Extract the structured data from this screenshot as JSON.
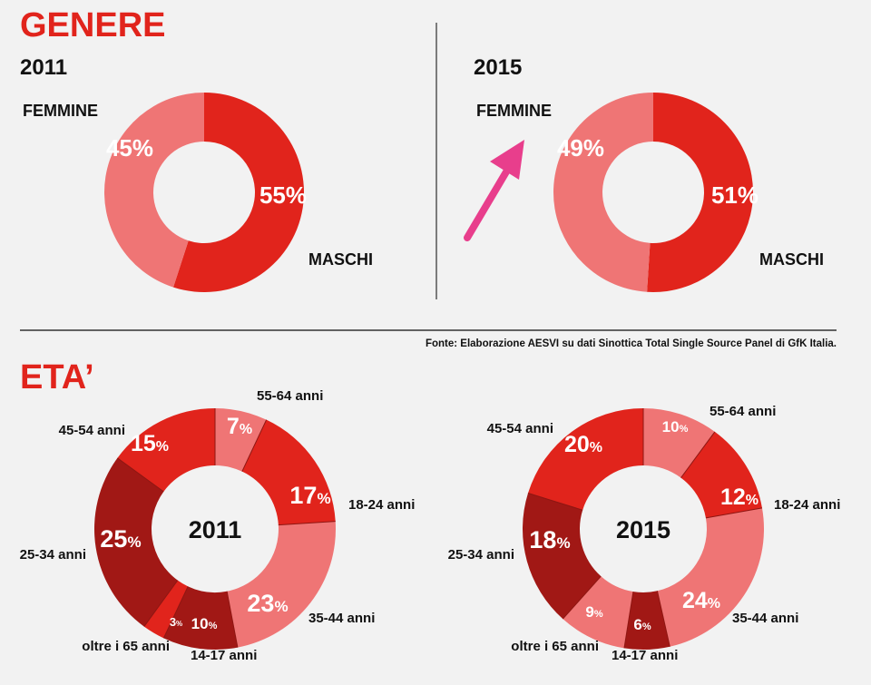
{
  "sections": {
    "gender_title": "GENERE",
    "age_title": "ETA’",
    "source": "Fonte: Elaborazione AESVI su dati Sinottica Total Single Source Panel di GfK Italia."
  },
  "colors": {
    "title": "#e1241c",
    "arrow": "#e83e8c",
    "pink": "#ef7575",
    "red": "#e1241c",
    "dark": "#a11815"
  },
  "chart_data": [
    {
      "type": "pie",
      "id": "gender-2011",
      "title": "2011",
      "donut": true,
      "slices": [
        {
          "label": "MASCHI",
          "value": 55,
          "display": "55%",
          "color": "#e1241c"
        },
        {
          "label": "FEMMINE",
          "value": 45,
          "display": "45%",
          "color": "#ef7575"
        }
      ]
    },
    {
      "type": "pie",
      "id": "gender-2015",
      "title": "2015",
      "donut": true,
      "slices": [
        {
          "label": "MASCHI",
          "value": 51,
          "display": "51%",
          "color": "#e1241c"
        },
        {
          "label": "FEMMINE",
          "value": 49,
          "display": "49%",
          "color": "#ef7575"
        }
      ]
    },
    {
      "type": "pie",
      "id": "age-2011",
      "title": "2011",
      "donut": true,
      "slices": [
        {
          "label": "55-64 anni",
          "value": 7,
          "num": "7",
          "color": "#ef7575"
        },
        {
          "label": "18-24 anni",
          "value": 17,
          "num": "17",
          "color": "#e1241c"
        },
        {
          "label": "35-44 anni",
          "value": 23,
          "num": "23",
          "color": "#ef7575"
        },
        {
          "label": "14-17 anni",
          "value": 10,
          "num": "10",
          "color": "#a11815"
        },
        {
          "label": "oltre i 65 anni",
          "value": 3,
          "num": "3",
          "color": "#e1241c"
        },
        {
          "label": "25-34 anni",
          "value": 25,
          "num": "25",
          "color": "#a11815"
        },
        {
          "label": "45-54 anni",
          "value": 15,
          "num": "15",
          "color": "#e1241c"
        }
      ]
    },
    {
      "type": "pie",
      "id": "age-2015",
      "title": "2015",
      "donut": true,
      "slices": [
        {
          "label": "55-64 anni",
          "value": 10,
          "num": "10",
          "color": "#ef7575"
        },
        {
          "label": "18-24 anni",
          "value": 12,
          "num": "12",
          "color": "#e1241c"
        },
        {
          "label": "35-44 anni",
          "value": 24,
          "num": "24",
          "color": "#ef7575"
        },
        {
          "label": "14-17 anni",
          "value": 6,
          "num": "6",
          "color": "#a11815"
        },
        {
          "label": "oltre i 65 anni",
          "value": 9,
          "num": "9",
          "color": "#ef7575"
        },
        {
          "label": "25-34 anni",
          "value": 18,
          "num": "18",
          "color": "#a11815"
        },
        {
          "label": "45-54 anni",
          "value": 20,
          "num": "20",
          "color": "#e1241c"
        }
      ]
    }
  ]
}
